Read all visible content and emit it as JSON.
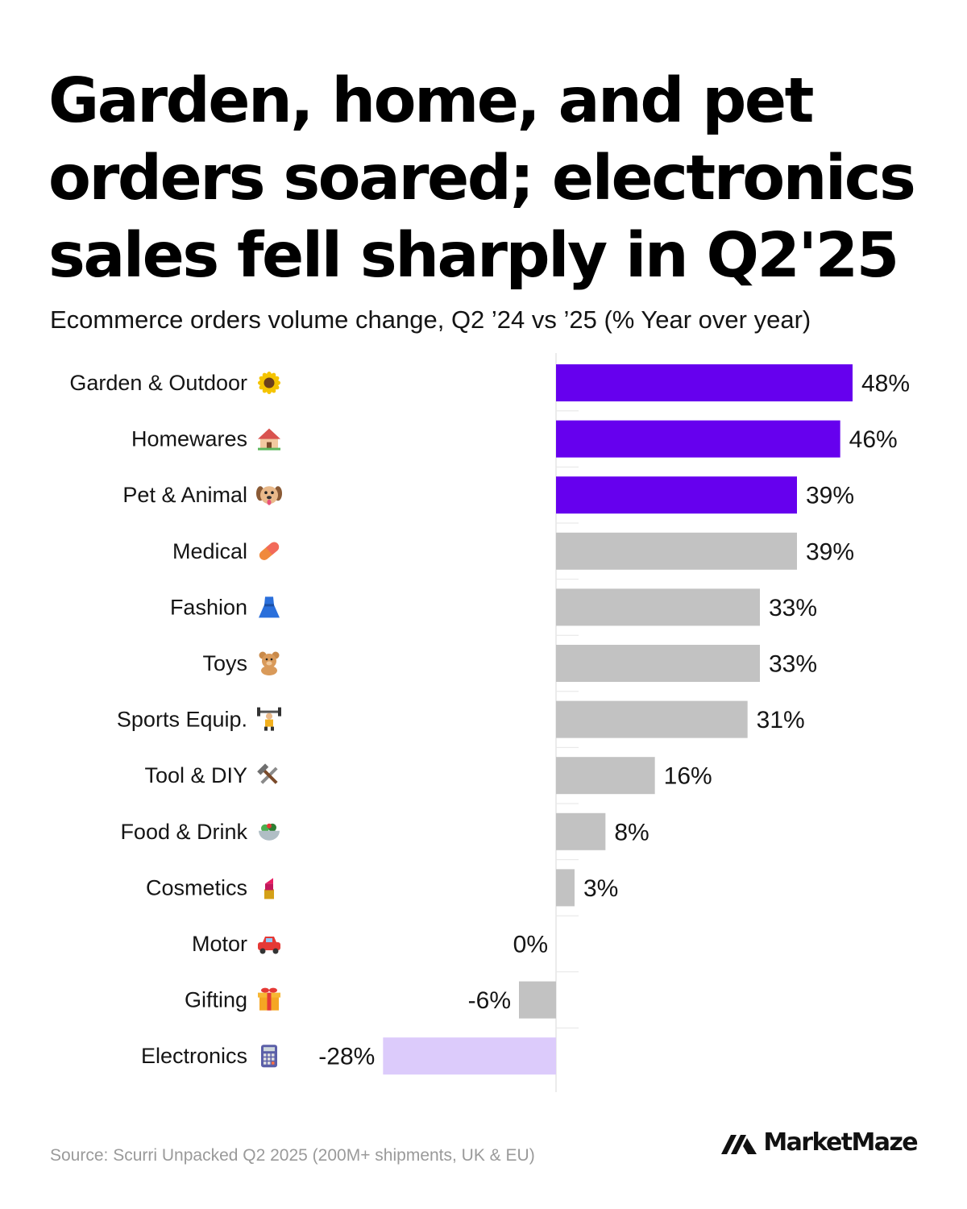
{
  "header": {
    "title": "Garden, home, and pet orders soared; electronics sales fell sharply in Q2'25",
    "subtitle": "Ecommerce orders volume change, Q2 ’24 vs ’25 (% Year over year)"
  },
  "footer": {
    "source": "Source: Scurri Unpacked Q2 2025 (200M+ shipments, UK & EU)",
    "brand": "MarketMaze"
  },
  "colors": {
    "highlight": "#6600ee",
    "neutral": "#c2c2c2",
    "negative_highlight": "#dccbfb",
    "gridline": "#e6e6e6"
  },
  "chart_data": {
    "type": "bar",
    "orientation": "horizontal",
    "categories": [
      "Garden & Outdoor",
      "Homewares",
      "Pet & Animal",
      "Medical",
      "Fashion",
      "Toys",
      "Sports Equip.",
      "Tool & DIY",
      "Food & Drink",
      "Cosmetics",
      "Motor",
      "Gifting",
      "Electronics"
    ],
    "category_icons": [
      "sunflower-icon",
      "house-icon",
      "dog-icon",
      "pill-icon",
      "dress-icon",
      "teddy-bear-icon",
      "weightlifter-icon",
      "tools-icon",
      "salad-icon",
      "lipstick-icon",
      "car-icon",
      "gift-icon",
      "calculator-icon"
    ],
    "values": [
      48,
      46,
      39,
      39,
      33,
      33,
      31,
      16,
      8,
      3,
      0,
      -6,
      -28
    ],
    "value_labels": [
      "48%",
      "46%",
      "39%",
      "39%",
      "33%",
      "33%",
      "31%",
      "16%",
      "8%",
      "3%",
      "0%",
      "-6%",
      "-28%"
    ],
    "bar_colors": [
      "highlight",
      "highlight",
      "highlight",
      "neutral",
      "neutral",
      "neutral",
      "neutral",
      "neutral",
      "neutral",
      "neutral",
      "neutral",
      "neutral",
      "negative_highlight"
    ],
    "unit": "%",
    "xlim": [
      -28,
      48
    ],
    "grid": false
  }
}
